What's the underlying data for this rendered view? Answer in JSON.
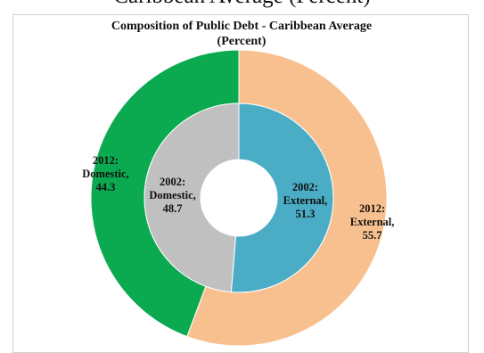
{
  "header": {
    "cutoff_title": "Caribbean Average (Percent)"
  },
  "chart_data": {
    "type": "pie",
    "title": "Composition of Public Debt - Caribbean Average",
    "subtitle": "(Percent)",
    "rings": [
      {
        "year": "2012",
        "slices": [
          {
            "label": "External",
            "value": 55.7,
            "color": "#F9C08F",
            "text": [
              "2012:",
              "External,",
              "55.7"
            ]
          },
          {
            "label": "Domestic",
            "value": 44.3,
            "color": "#0BAA50",
            "text": [
              "2012:",
              "Domestic,",
              "44.3"
            ]
          }
        ]
      },
      {
        "year": "2002",
        "slices": [
          {
            "label": "External",
            "value": 51.3,
            "color": "#4BACC6",
            "text": [
              "2002:",
              "External,",
              "51.3"
            ]
          },
          {
            "label": "Domestic",
            "value": 48.7,
            "color": "#C0C0C0",
            "text": [
              "2002:",
              "Domestic,",
              "48.7"
            ]
          }
        ]
      }
    ]
  }
}
